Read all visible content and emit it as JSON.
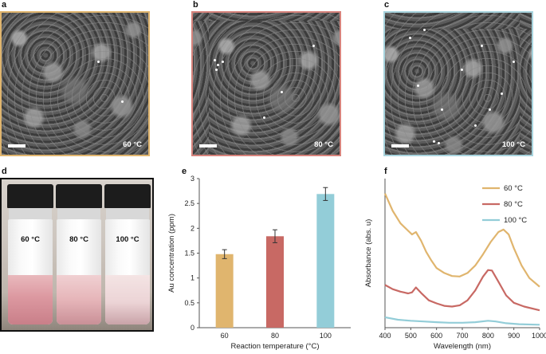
{
  "panels": {
    "a": {
      "letter": "a",
      "temp": "60 °C",
      "border": "#e0b56e"
    },
    "b": {
      "letter": "b",
      "temp": "80 °C",
      "border": "#d7837c"
    },
    "c": {
      "letter": "c",
      "temp": "100 °C",
      "border": "#a8d4de"
    },
    "d": {
      "letter": "d",
      "vials": [
        "60 °C",
        "80 °C",
        "100 °C"
      ]
    },
    "e": {
      "letter": "e"
    },
    "f": {
      "letter": "f"
    }
  },
  "colors": {
    "c60": "#e0b56e",
    "c80": "#c86964",
    "c100": "#93cdd8"
  },
  "chart_data": [
    {
      "type": "bar",
      "categories": [
        "60",
        "80",
        "100"
      ],
      "values": [
        1.48,
        1.84,
        2.69
      ],
      "errors": [
        0.09,
        0.13,
        0.13
      ],
      "colors": [
        "#e0b56e",
        "#c86964",
        "#93cdd8"
      ],
      "xlabel": "Reaction temperature (°C)",
      "ylabel": "Au concentration (ppm)",
      "ylim": [
        0,
        3
      ],
      "yticks": [
        "0",
        "0.5",
        "1",
        "1.5",
        "2",
        "2.5",
        "3"
      ]
    },
    {
      "type": "line",
      "xlabel": "Wavelength (nm)",
      "ylabel": "Absorbance (abs. u)",
      "xlim": [
        400,
        1000
      ],
      "xticks": [
        "400",
        "500",
        "600",
        "700",
        "800",
        "900",
        "1000"
      ],
      "ylim": [
        0,
        6
      ],
      "legend": "top-right",
      "series": [
        {
          "name": "60 °C",
          "color": "#e0b56e",
          "points": [
            [
              400,
              5.4
            ],
            [
              430,
              4.7
            ],
            [
              460,
              4.2
            ],
            [
              490,
              3.9
            ],
            [
              505,
              3.75
            ],
            [
              520,
              3.85
            ],
            [
              540,
              3.5
            ],
            [
              560,
              3.05
            ],
            [
              580,
              2.7
            ],
            [
              600,
              2.4
            ],
            [
              630,
              2.2
            ],
            [
              660,
              2.08
            ],
            [
              690,
              2.06
            ],
            [
              720,
              2.2
            ],
            [
              750,
              2.5
            ],
            [
              780,
              2.95
            ],
            [
              810,
              3.45
            ],
            [
              840,
              3.85
            ],
            [
              860,
              3.95
            ],
            [
              880,
              3.75
            ],
            [
              900,
              3.2
            ],
            [
              930,
              2.5
            ],
            [
              960,
              2.0
            ],
            [
              1000,
              1.65
            ]
          ]
        },
        {
          "name": "80 °C",
          "color": "#c86964",
          "points": [
            [
              400,
              1.72
            ],
            [
              430,
              1.55
            ],
            [
              460,
              1.45
            ],
            [
              490,
              1.38
            ],
            [
              505,
              1.42
            ],
            [
              520,
              1.62
            ],
            [
              540,
              1.4
            ],
            [
              570,
              1.1
            ],
            [
              600,
              0.98
            ],
            [
              630,
              0.88
            ],
            [
              660,
              0.85
            ],
            [
              690,
              0.9
            ],
            [
              720,
              1.1
            ],
            [
              750,
              1.5
            ],
            [
              780,
              2.05
            ],
            [
              800,
              2.32
            ],
            [
              815,
              2.3
            ],
            [
              840,
              1.85
            ],
            [
              870,
              1.3
            ],
            [
              900,
              1.0
            ],
            [
              940,
              0.85
            ],
            [
              1000,
              0.7
            ]
          ]
        },
        {
          "name": "100 °C",
          "color": "#93cdd8",
          "points": [
            [
              400,
              0.42
            ],
            [
              450,
              0.32
            ],
            [
              500,
              0.28
            ],
            [
              550,
              0.25
            ],
            [
              600,
              0.22
            ],
            [
              650,
              0.2
            ],
            [
              700,
              0.2
            ],
            [
              750,
              0.22
            ],
            [
              800,
              0.28
            ],
            [
              830,
              0.25
            ],
            [
              870,
              0.18
            ],
            [
              920,
              0.14
            ],
            [
              1000,
              0.12
            ]
          ]
        }
      ]
    }
  ]
}
